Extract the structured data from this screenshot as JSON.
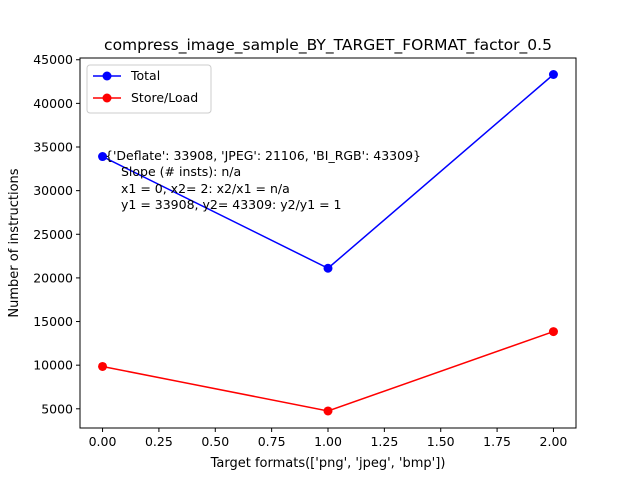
{
  "chart_data": {
    "type": "line",
    "title": "compress_image_sample_BY_TARGET_FORMAT_factor_0.5",
    "xlabel": "Target formats(['png', 'jpeg', 'bmp'])",
    "ylabel": "Number of instructions",
    "x": [
      0,
      1,
      2
    ],
    "xlim": [
      -0.1,
      2.1
    ],
    "ylim": [
      2800,
      45200
    ],
    "xticks": [
      0.0,
      0.25,
      0.5,
      0.75,
      1.0,
      1.25,
      1.5,
      1.75,
      2.0
    ],
    "xtick_labels": [
      "0.00",
      "0.25",
      "0.50",
      "0.75",
      "1.00",
      "1.25",
      "1.50",
      "1.75",
      "2.00"
    ],
    "yticks": [
      5000,
      10000,
      15000,
      20000,
      25000,
      30000,
      35000,
      40000,
      45000
    ],
    "ytick_labels": [
      "5000",
      "10000",
      "15000",
      "20000",
      "25000",
      "30000",
      "35000",
      "40000",
      "45000"
    ],
    "series": [
      {
        "name": "Total",
        "color": "#0000ff",
        "values": [
          33908,
          21106,
          43309
        ]
      },
      {
        "name": "Store/Load",
        "color": "#ff0000",
        "values": [
          9850,
          4750,
          13850
        ]
      }
    ],
    "legend_position": "top-left",
    "grid": false,
    "annotation": [
      "{'Deflate': 33908, 'JPEG': 21106, 'BI_RGB': 43309}",
      "Slope (# insts): n/a",
      "x1 = 0, x2= 2: x2/x1 = n/a",
      "y1 = 33908, y2= 43309: y2/y1 = 1"
    ]
  }
}
